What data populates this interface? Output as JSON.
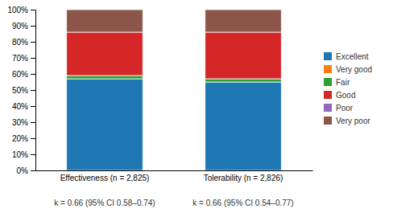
{
  "chart_data": {
    "type": "bar",
    "stacked": true,
    "grid": false,
    "legend": "right",
    "categories": [
      "Effectiveness (n = 2,825)",
      "Tolerability (n = 2,826)"
    ],
    "series": [
      {
        "name": "Excellent",
        "values": [
          57,
          55
        ]
      },
      {
        "name": "Very good",
        "values": [
          0,
          0
        ]
      },
      {
        "name": "Fair",
        "values": [
          2,
          2
        ]
      },
      {
        "name": "Good",
        "values": [
          27,
          29
        ]
      },
      {
        "name": "Poor",
        "values": [
          0,
          0
        ]
      },
      {
        "name": "Very poor",
        "values": [
          14,
          14
        ]
      }
    ],
    "ylim": [
      0,
      100
    ],
    "yticks": [
      {
        "value": 0,
        "label": "0%"
      },
      {
        "value": 10,
        "label": "10%"
      },
      {
        "value": 20,
        "label": "20%"
      },
      {
        "value": 30,
        "label": "30%"
      },
      {
        "value": 40,
        "label": "40%"
      },
      {
        "value": 50,
        "label": "50%"
      },
      {
        "value": 60,
        "label": "60%"
      },
      {
        "value": 70,
        "label": "70%"
      },
      {
        "value": 80,
        "label": "80%"
      },
      {
        "value": 90,
        "label": "90%"
      },
      {
        "value": 100,
        "label": "100%"
      }
    ],
    "annotations": [
      "k = 0.66 (95% CI 0.58–0.74)",
      "k = 0.66 (95% CI 0.54–0.77)"
    ]
  }
}
